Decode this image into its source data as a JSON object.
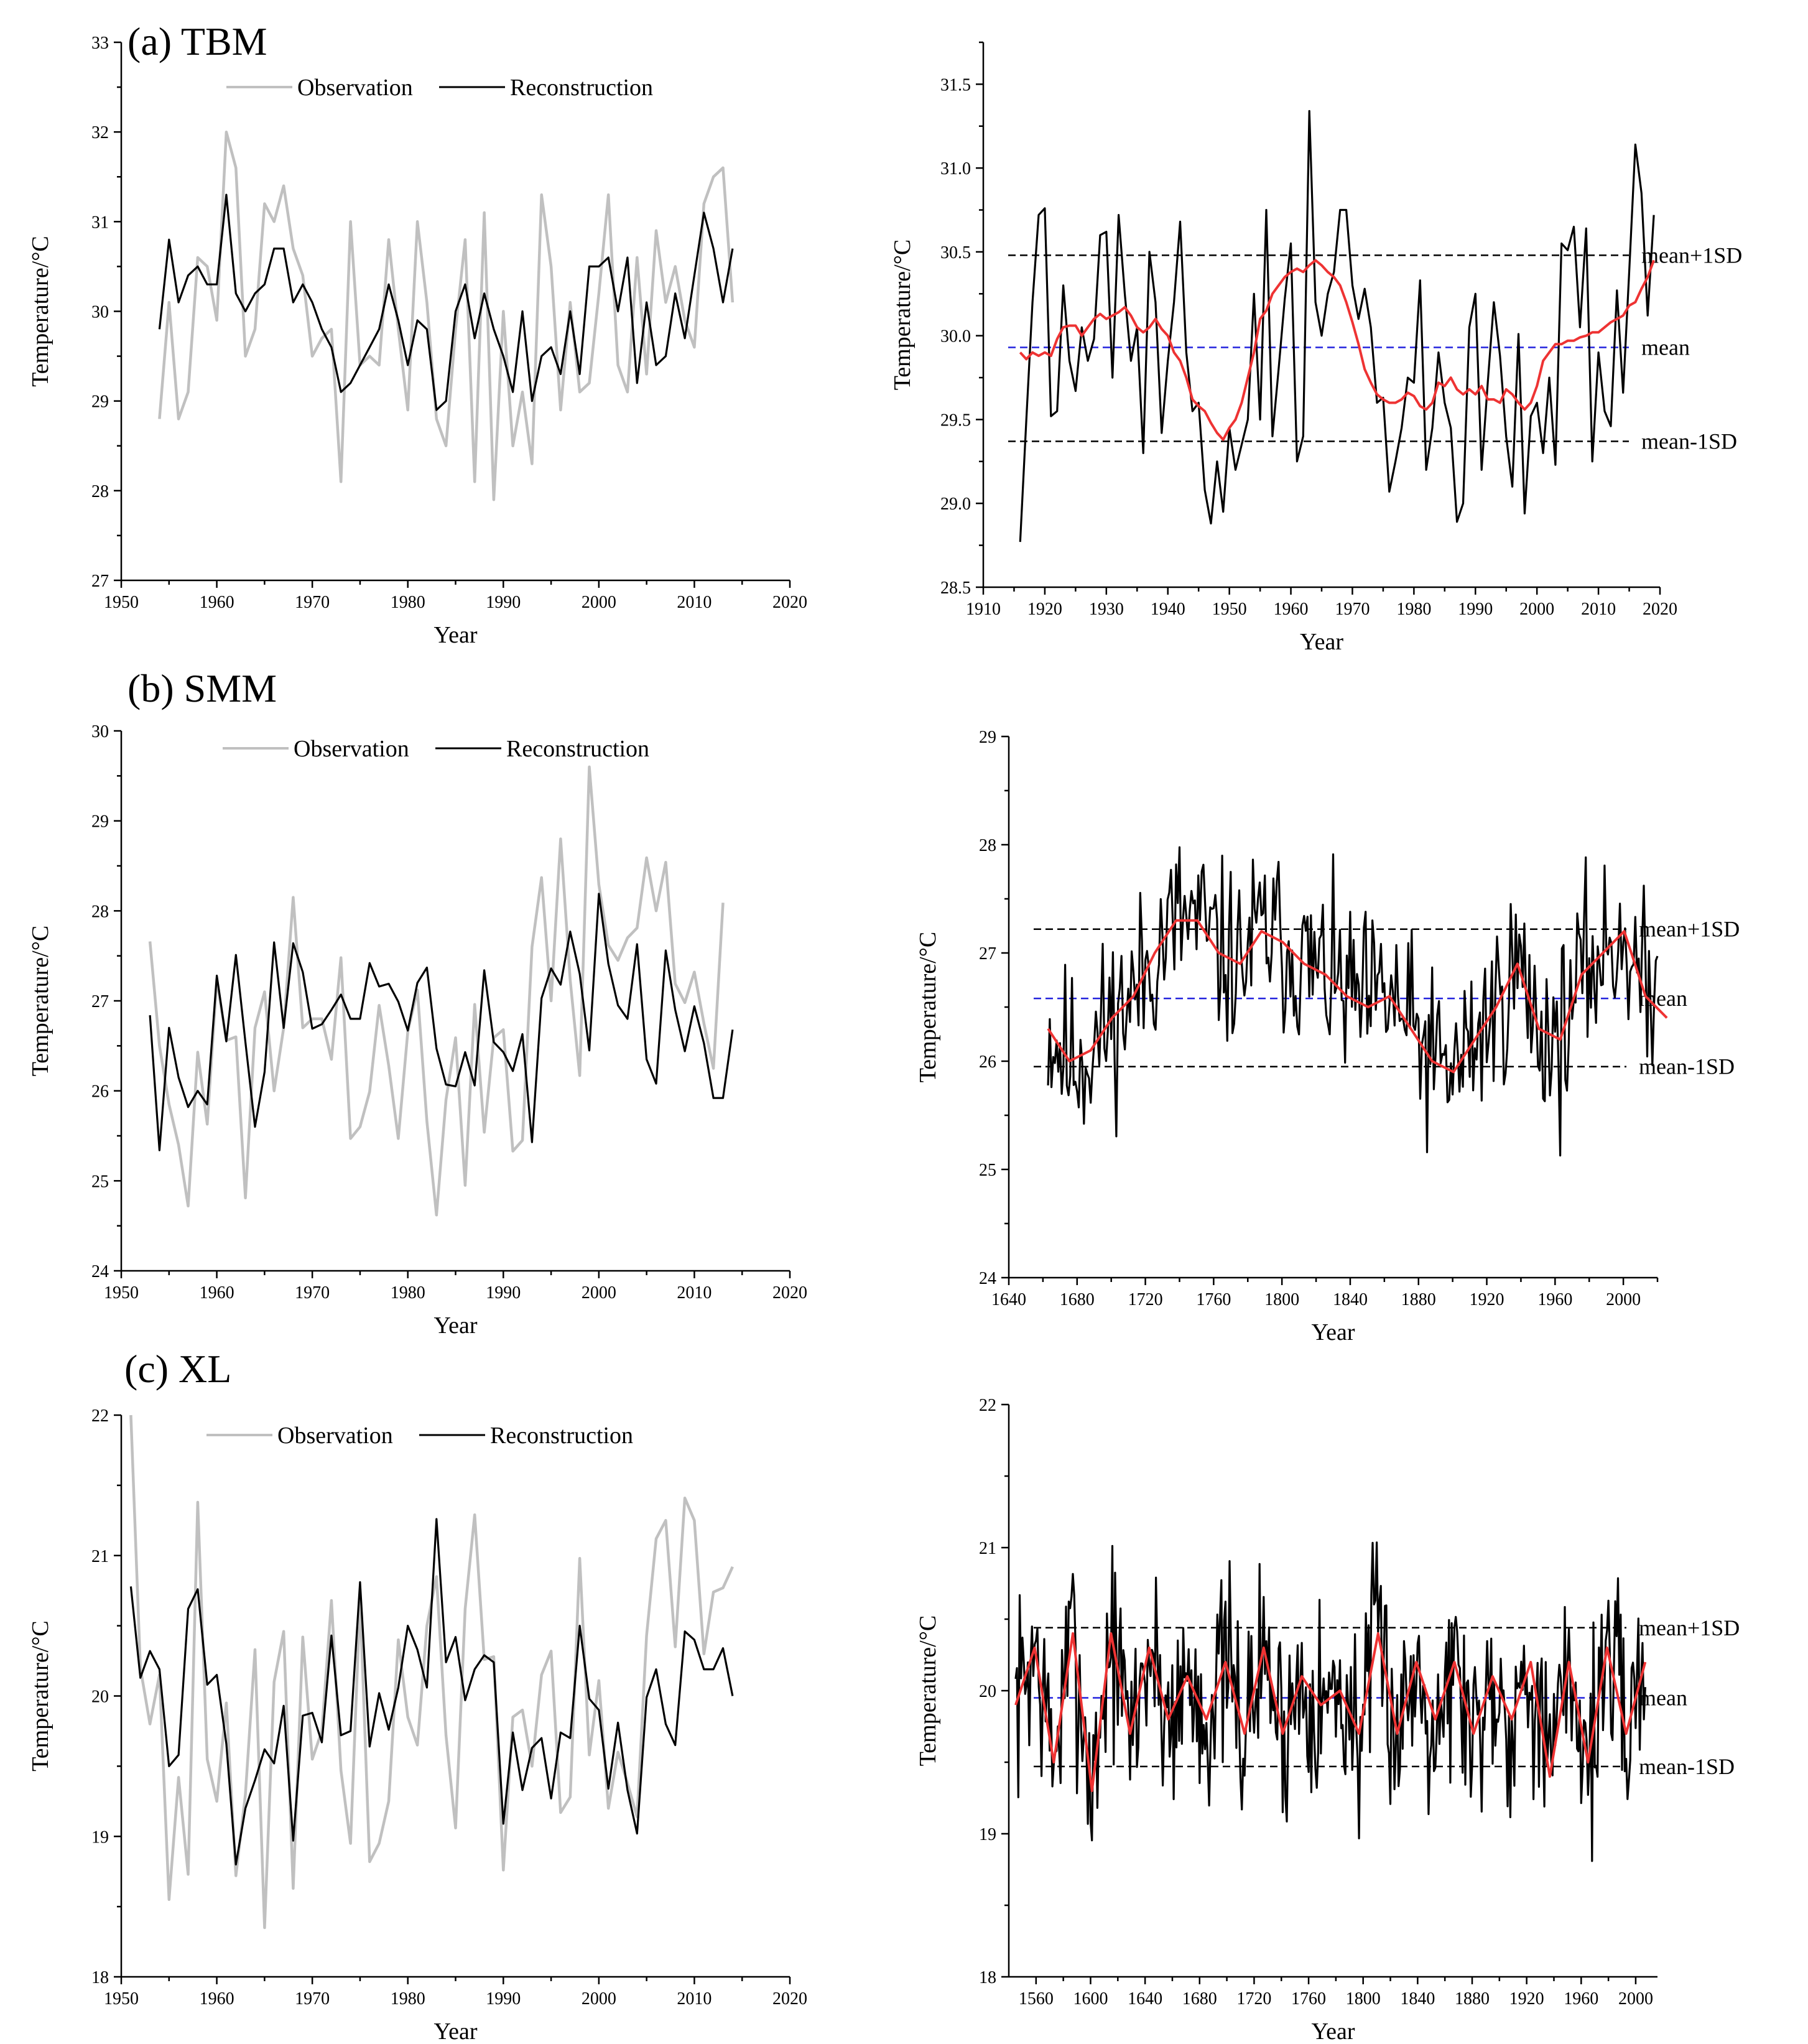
{
  "figure": {
    "legend": {
      "observation": "Observation",
      "reconstruction": "Reconstruction"
    }
  },
  "colors": {
    "observation": "#c0c0c0",
    "reconstruction": "#000000",
    "smooth": "#ee3333",
    "mean_line": "#2222dd",
    "sd_line": "#000000"
  },
  "chart_data": [
    {
      "id": "a-left",
      "type": "line",
      "panel_label": "(a) TBM",
      "title": "",
      "xlabel": "Year",
      "ylabel": "Temperature/°C",
      "xlim": [
        1950,
        2020
      ],
      "ylim": [
        27,
        33
      ],
      "xticks": [
        1950,
        1960,
        1970,
        1980,
        1990,
        2000,
        2010,
        2020
      ],
      "yticks": [
        27,
        28,
        29,
        30,
        31,
        32,
        33
      ],
      "ytick_decimals": 0,
      "series": [
        {
          "name": "Observation",
          "color": "#c0c0c0",
          "x_start": 1954,
          "values": [
            28.8,
            30.1,
            28.8,
            29.1,
            30.6,
            30.5,
            29.9,
            32.0,
            31.6,
            29.5,
            29.8,
            31.2,
            31.0,
            31.4,
            30.7,
            30.4,
            29.5,
            29.7,
            29.8,
            28.1,
            31.0,
            29.4,
            29.5,
            29.4,
            30.8,
            29.8,
            28.9,
            31.0,
            30.1,
            28.8,
            28.5,
            29.8,
            30.8,
            28.1,
            31.1,
            27.9,
            30.0,
            28.5,
            29.1,
            28.3,
            31.3,
            30.5,
            28.9,
            30.1,
            29.1,
            29.2,
            30.2,
            31.3,
            29.4,
            29.1,
            30.6,
            29.3,
            30.9,
            30.1,
            30.5,
            29.9,
            29.6,
            31.2,
            31.5,
            31.6,
            30.1
          ]
        },
        {
          "name": "Reconstruction",
          "color": "#000000",
          "x_start": 1954,
          "values": [
            29.8,
            30.8,
            30.1,
            30.4,
            30.5,
            30.3,
            30.3,
            31.3,
            30.2,
            30.0,
            30.2,
            30.3,
            30.7,
            30.7,
            30.1,
            30.3,
            30.1,
            29.8,
            29.6,
            29.1,
            29.2,
            29.4,
            29.6,
            29.8,
            30.3,
            29.9,
            29.4,
            29.9,
            29.8,
            28.9,
            29.0,
            30.0,
            30.3,
            29.7,
            30.2,
            29.8,
            29.5,
            29.1,
            30.0,
            29.0,
            29.5,
            29.6,
            29.3,
            30.0,
            29.3,
            30.5,
            30.5,
            30.6,
            30.0,
            30.6,
            29.2,
            30.1,
            29.4,
            29.5,
            30.2,
            29.7,
            30.4,
            31.1,
            30.7,
            30.1,
            30.7
          ]
        }
      ]
    },
    {
      "id": "a-right",
      "type": "line",
      "panel_label": "",
      "title": "",
      "xlabel": "Year",
      "ylabel": "Temperature/°C",
      "xlim": [
        1910,
        2020
      ],
      "ylim": [
        28.5,
        31.75
      ],
      "xticks": [
        1910,
        1920,
        1930,
        1940,
        1950,
        1960,
        1970,
        1980,
        1990,
        2000,
        2010,
        2020
      ],
      "yticks": [
        28.5,
        29.0,
        29.5,
        30.0,
        30.5,
        31.0,
        31.5
      ],
      "ytick_decimals": 1,
      "reference_lines": [
        {
          "label": "mean+1SD",
          "value": 30.48,
          "style": "sd"
        },
        {
          "label": "mean",
          "value": 29.93,
          "style": "mean"
        },
        {
          "label": "mean-1SD",
          "value": 29.37,
          "style": "sd"
        }
      ],
      "series": [
        {
          "name": "Reconstruction",
          "color": "#000000",
          "x_start": 1916,
          "values": [
            28.77,
            29.5,
            30.2,
            30.72,
            30.76,
            29.52,
            29.55,
            30.3,
            29.85,
            29.67,
            30.05,
            29.85,
            29.98,
            30.6,
            30.62,
            29.75,
            30.72,
            30.25,
            29.85,
            30.05,
            29.3,
            30.5,
            30.2,
            29.42,
            29.85,
            30.2,
            30.68,
            29.9,
            29.55,
            29.6,
            29.08,
            28.88,
            29.25,
            28.95,
            29.45,
            29.2,
            29.35,
            29.5,
            30.25,
            29.5,
            30.75,
            29.4,
            29.8,
            30.22,
            30.55,
            29.25,
            29.4,
            31.34,
            30.2,
            30.0,
            30.25,
            30.38,
            30.75,
            30.75,
            30.3,
            30.1,
            30.28,
            30.05,
            29.6,
            29.63,
            29.07,
            29.25,
            29.45,
            29.75,
            29.72,
            30.33,
            29.2,
            29.45,
            29.9,
            29.6,
            29.45,
            28.89,
            29.0,
            30.05,
            30.25,
            29.2,
            29.72,
            30.2,
            29.88,
            29.4,
            29.1,
            30.01,
            28.94,
            29.52,
            29.6,
            29.3,
            29.75,
            29.23,
            30.55,
            30.51,
            30.65,
            30.05,
            30.64,
            29.25,
            29.9,
            29.55,
            29.46,
            30.27,
            29.66,
            30.38,
            31.14,
            30.85,
            30.12,
            30.72
          ]
        },
        {
          "name": "Smoothed",
          "color": "#ee3333",
          "x_start": 1916,
          "values": [
            29.9,
            29.86,
            29.9,
            29.88,
            29.9,
            29.88,
            29.98,
            30.05,
            30.06,
            30.06,
            30.0,
            30.05,
            30.1,
            30.13,
            30.1,
            30.12,
            30.14,
            30.17,
            30.12,
            30.05,
            30.02,
            30.05,
            30.1,
            30.04,
            30.0,
            29.9,
            29.85,
            29.75,
            29.62,
            29.58,
            29.55,
            29.48,
            29.42,
            29.38,
            29.45,
            29.5,
            29.6,
            29.75,
            29.9,
            30.1,
            30.15,
            30.25,
            30.3,
            30.35,
            30.38,
            30.4,
            30.38,
            30.42,
            30.45,
            30.42,
            30.38,
            30.35,
            30.3,
            30.2,
            30.08,
            29.95,
            29.8,
            29.72,
            29.65,
            29.62,
            29.6,
            29.6,
            29.62,
            29.66,
            29.64,
            29.58,
            29.56,
            29.6,
            29.72,
            29.7,
            29.75,
            29.68,
            29.65,
            29.68,
            29.65,
            29.7,
            29.62,
            29.62,
            29.6,
            29.68,
            29.65,
            29.6,
            29.56,
            29.6,
            29.7,
            29.85,
            29.9,
            29.95,
            29.95,
            29.97,
            29.97,
            29.99,
            30.0,
            30.02,
            30.02,
            30.05,
            30.08,
            30.1,
            30.12,
            30.18,
            30.2,
            30.28,
            30.35,
            30.45
          ]
        }
      ]
    },
    {
      "id": "b-left",
      "type": "line",
      "panel_label": "(b) SMM",
      "title": "",
      "xlabel": "Year",
      "ylabel": "Temperature/°C",
      "xlim": [
        1950,
        2020
      ],
      "ylim": [
        24,
        30
      ],
      "xticks": [
        1950,
        1960,
        1970,
        1980,
        1990,
        2000,
        2010,
        2020
      ],
      "yticks": [
        24,
        25,
        26,
        27,
        28,
        29,
        30
      ],
      "ytick_decimals": 0,
      "series": [
        {
          "name": "Observation",
          "color": "#c0c0c0",
          "x_start": 1953,
          "values": [
            27.66,
            26.5,
            25.85,
            25.4,
            24.72,
            26.43,
            25.63,
            27.24,
            26.56,
            26.6,
            24.81,
            26.7,
            27.1,
            26.0,
            26.7,
            28.15,
            26.7,
            26.8,
            26.8,
            26.35,
            27.48,
            25.47,
            25.6,
            25.99,
            26.95,
            26.28,
            25.47,
            26.66,
            27.12,
            25.66,
            24.62,
            25.9,
            26.59,
            24.95,
            26.96,
            25.54,
            26.59,
            26.68,
            25.33,
            25.45,
            27.6,
            28.37,
            27.0,
            28.8,
            27.23,
            26.17,
            29.6,
            28.29,
            27.62,
            27.45,
            27.7,
            27.81,
            28.59,
            28.0,
            28.54,
            27.19,
            26.98,
            27.32,
            26.75,
            26.25,
            28.09
          ]
        },
        {
          "name": "Reconstruction",
          "color": "#000000",
          "x_start": 1953,
          "values": [
            26.84,
            25.34,
            26.7,
            26.15,
            25.82,
            26.0,
            25.85,
            27.28,
            26.55,
            27.51,
            26.54,
            25.6,
            26.21,
            27.65,
            26.7,
            27.64,
            27.32,
            26.69,
            26.74,
            26.9,
            27.07,
            26.8,
            26.8,
            27.42,
            27.16,
            27.19,
            26.99,
            26.67,
            27.2,
            27.37,
            26.47,
            26.07,
            26.05,
            26.43,
            26.06,
            27.34,
            26.54,
            26.43,
            26.22,
            26.63,
            25.43,
            27.03,
            27.36,
            27.18,
            27.77,
            27.3,
            26.45,
            28.19,
            27.41,
            26.95,
            26.8,
            27.63,
            26.35,
            26.08,
            27.56,
            26.9,
            26.44,
            26.94,
            26.53,
            25.92,
            25.92,
            26.68
          ]
        }
      ]
    },
    {
      "id": "b-right",
      "type": "line",
      "panel_label": "",
      "title": "",
      "xlabel": "Year",
      "ylabel": "Temperature/°C",
      "xlim": [
        1640,
        2020
      ],
      "ylim": [
        24,
        29
      ],
      "xticks": [
        1640,
        1680,
        1720,
        1760,
        1800,
        1840,
        1880,
        1920,
        1960,
        2000
      ],
      "yticks": [
        24,
        25,
        26,
        27,
        28,
        29
      ],
      "ytick_decimals": 0,
      "reference_lines": [
        {
          "label": "mean+1SD",
          "value": 27.22,
          "style": "sd"
        },
        {
          "label": "mean",
          "value": 26.58,
          "style": "mean"
        },
        {
          "label": "mean-1SD",
          "value": 25.95,
          "style": "sd"
        }
      ],
      "series": [
        {
          "name": "Reconstruction",
          "color": "#000000",
          "x_start": 1663,
          "x_step": 1,
          "synthetic_noise": true,
          "amplitude": 0.72,
          "seed": 11,
          "anchor_values": [
            26.3,
            26.0,
            26.1,
            26.4,
            26.6,
            27.0,
            27.3,
            27.3,
            27.0,
            26.9,
            27.2,
            27.1,
            26.9,
            26.8,
            26.6,
            26.5,
            26.6,
            26.3,
            26.0,
            25.9,
            26.2,
            26.5,
            26.9,
            26.3,
            26.2,
            26.8,
            27.0,
            27.2,
            26.6,
            26.4
          ],
          "anchor_step": 12.5
        },
        {
          "name": "Smoothed",
          "color": "#ee3333",
          "x_start": 1663,
          "x_step": 12.5,
          "values": [
            26.3,
            26.0,
            26.1,
            26.4,
            26.6,
            27.0,
            27.3,
            27.3,
            27.0,
            26.9,
            27.2,
            27.1,
            26.9,
            26.8,
            26.6,
            26.5,
            26.6,
            26.3,
            26.0,
            25.9,
            26.2,
            26.5,
            26.9,
            26.3,
            26.2,
            26.8,
            27.0,
            27.2,
            26.6,
            26.4
          ]
        }
      ]
    },
    {
      "id": "c-left",
      "type": "line",
      "panel_label": "(c) XL",
      "title": "",
      "xlabel": "Year",
      "ylabel": "Temperature/°C",
      "xlim": [
        1950,
        2020
      ],
      "ylim": [
        18,
        22
      ],
      "xticks": [
        1950,
        1960,
        1970,
        1980,
        1990,
        2000,
        2010,
        2020
      ],
      "yticks": [
        18,
        19,
        20,
        21,
        22
      ],
      "ytick_decimals": 0,
      "series": [
        {
          "name": "Observation",
          "color": "#c0c0c0",
          "x_start": 1951,
          "values": [
            22.0,
            20.2,
            19.8,
            20.15,
            18.55,
            19.42,
            18.73,
            21.38,
            19.55,
            19.25,
            19.95,
            18.72,
            19.3,
            20.33,
            18.35,
            20.1,
            20.46,
            18.63,
            20.42,
            19.55,
            19.75,
            20.68,
            19.47,
            18.95,
            20.69,
            18.82,
            18.95,
            19.25,
            20.4,
            19.85,
            19.65,
            20.5,
            20.85,
            19.72,
            19.06,
            20.62,
            21.29,
            20.26,
            20.28,
            18.76,
            19.85,
            19.9,
            19.5,
            20.15,
            20.32,
            19.17,
            19.28,
            20.98,
            19.58,
            20.11,
            19.2,
            19.6,
            19.38,
            19.14,
            20.43,
            21.12,
            21.25,
            20.35,
            21.41,
            21.25,
            20.3,
            20.74,
            20.77,
            20.92
          ]
        },
        {
          "name": "Reconstruction",
          "color": "#000000",
          "x_start": 1951,
          "values": [
            20.78,
            20.13,
            20.32,
            20.19,
            19.5,
            19.58,
            20.62,
            20.76,
            20.08,
            20.15,
            19.66,
            18.8,
            19.2,
            19.4,
            19.62,
            19.52,
            19.93,
            18.97,
            19.86,
            19.88,
            19.67,
            20.43,
            19.72,
            19.75,
            20.81,
            19.64,
            20.02,
            19.76,
            20.06,
            20.5,
            20.33,
            20.06,
            21.26,
            20.24,
            20.42,
            19.97,
            20.19,
            20.29,
            20.24,
            19.09,
            19.74,
            19.33,
            19.63,
            19.7,
            19.27,
            19.74,
            19.7,
            20.5,
            19.98,
            19.9,
            19.34,
            19.81,
            19.33,
            19.02,
            19.99,
            20.19,
            19.8,
            19.65,
            20.46,
            20.4,
            20.19,
            20.19,
            20.34,
            20.0
          ]
        }
      ]
    },
    {
      "id": "c-right",
      "type": "line",
      "panel_label": "",
      "title": "",
      "xlabel": "Year",
      "ylabel": "Temperature/°C",
      "xlim": [
        1540,
        2016
      ],
      "ylim": [
        18,
        22
      ],
      "xticks": [
        1560,
        1600,
        1640,
        1680,
        1720,
        1760,
        1800,
        1840,
        1880,
        1920,
        1960,
        2000
      ],
      "yticks": [
        18,
        19,
        20,
        21,
        22
      ],
      "ytick_decimals": 0,
      "reference_lines": [
        {
          "label": "mean+1SD",
          "value": 20.44,
          "style": "sd"
        },
        {
          "label": "mean",
          "value": 19.95,
          "style": "mean"
        },
        {
          "label": "mean-1SD",
          "value": 19.47,
          "style": "sd"
        }
      ],
      "series": [
        {
          "name": "Reconstruction",
          "color": "#000000",
          "x_start": 1545,
          "x_step": 1,
          "synthetic_noise": true,
          "amplitude": 0.6,
          "seed": 7,
          "anchor_values": [
            19.9,
            20.3,
            19.5,
            20.4,
            19.3,
            20.4,
            19.7,
            20.3,
            19.8,
            20.1,
            19.8,
            20.2,
            19.7,
            20.3,
            19.7,
            20.1,
            19.9,
            20.0,
            19.7,
            20.4,
            19.7,
            20.2,
            19.8,
            20.2,
            19.7,
            20.1,
            19.8,
            20.2,
            19.4,
            20.2,
            19.5,
            20.3,
            19.7,
            20.2
          ],
          "anchor_step": 14
        },
        {
          "name": "Smoothed",
          "color": "#ee3333",
          "x_start": 1545,
          "x_step": 14,
          "values": [
            19.9,
            20.3,
            19.5,
            20.4,
            19.3,
            20.4,
            19.7,
            20.3,
            19.8,
            20.1,
            19.8,
            20.2,
            19.7,
            20.3,
            19.7,
            20.1,
            19.9,
            20.0,
            19.7,
            20.4,
            19.7,
            20.2,
            19.8,
            20.2,
            19.7,
            20.1,
            19.8,
            20.2,
            19.4,
            20.2,
            19.5,
            20.3,
            19.7,
            20.2
          ]
        }
      ]
    }
  ]
}
